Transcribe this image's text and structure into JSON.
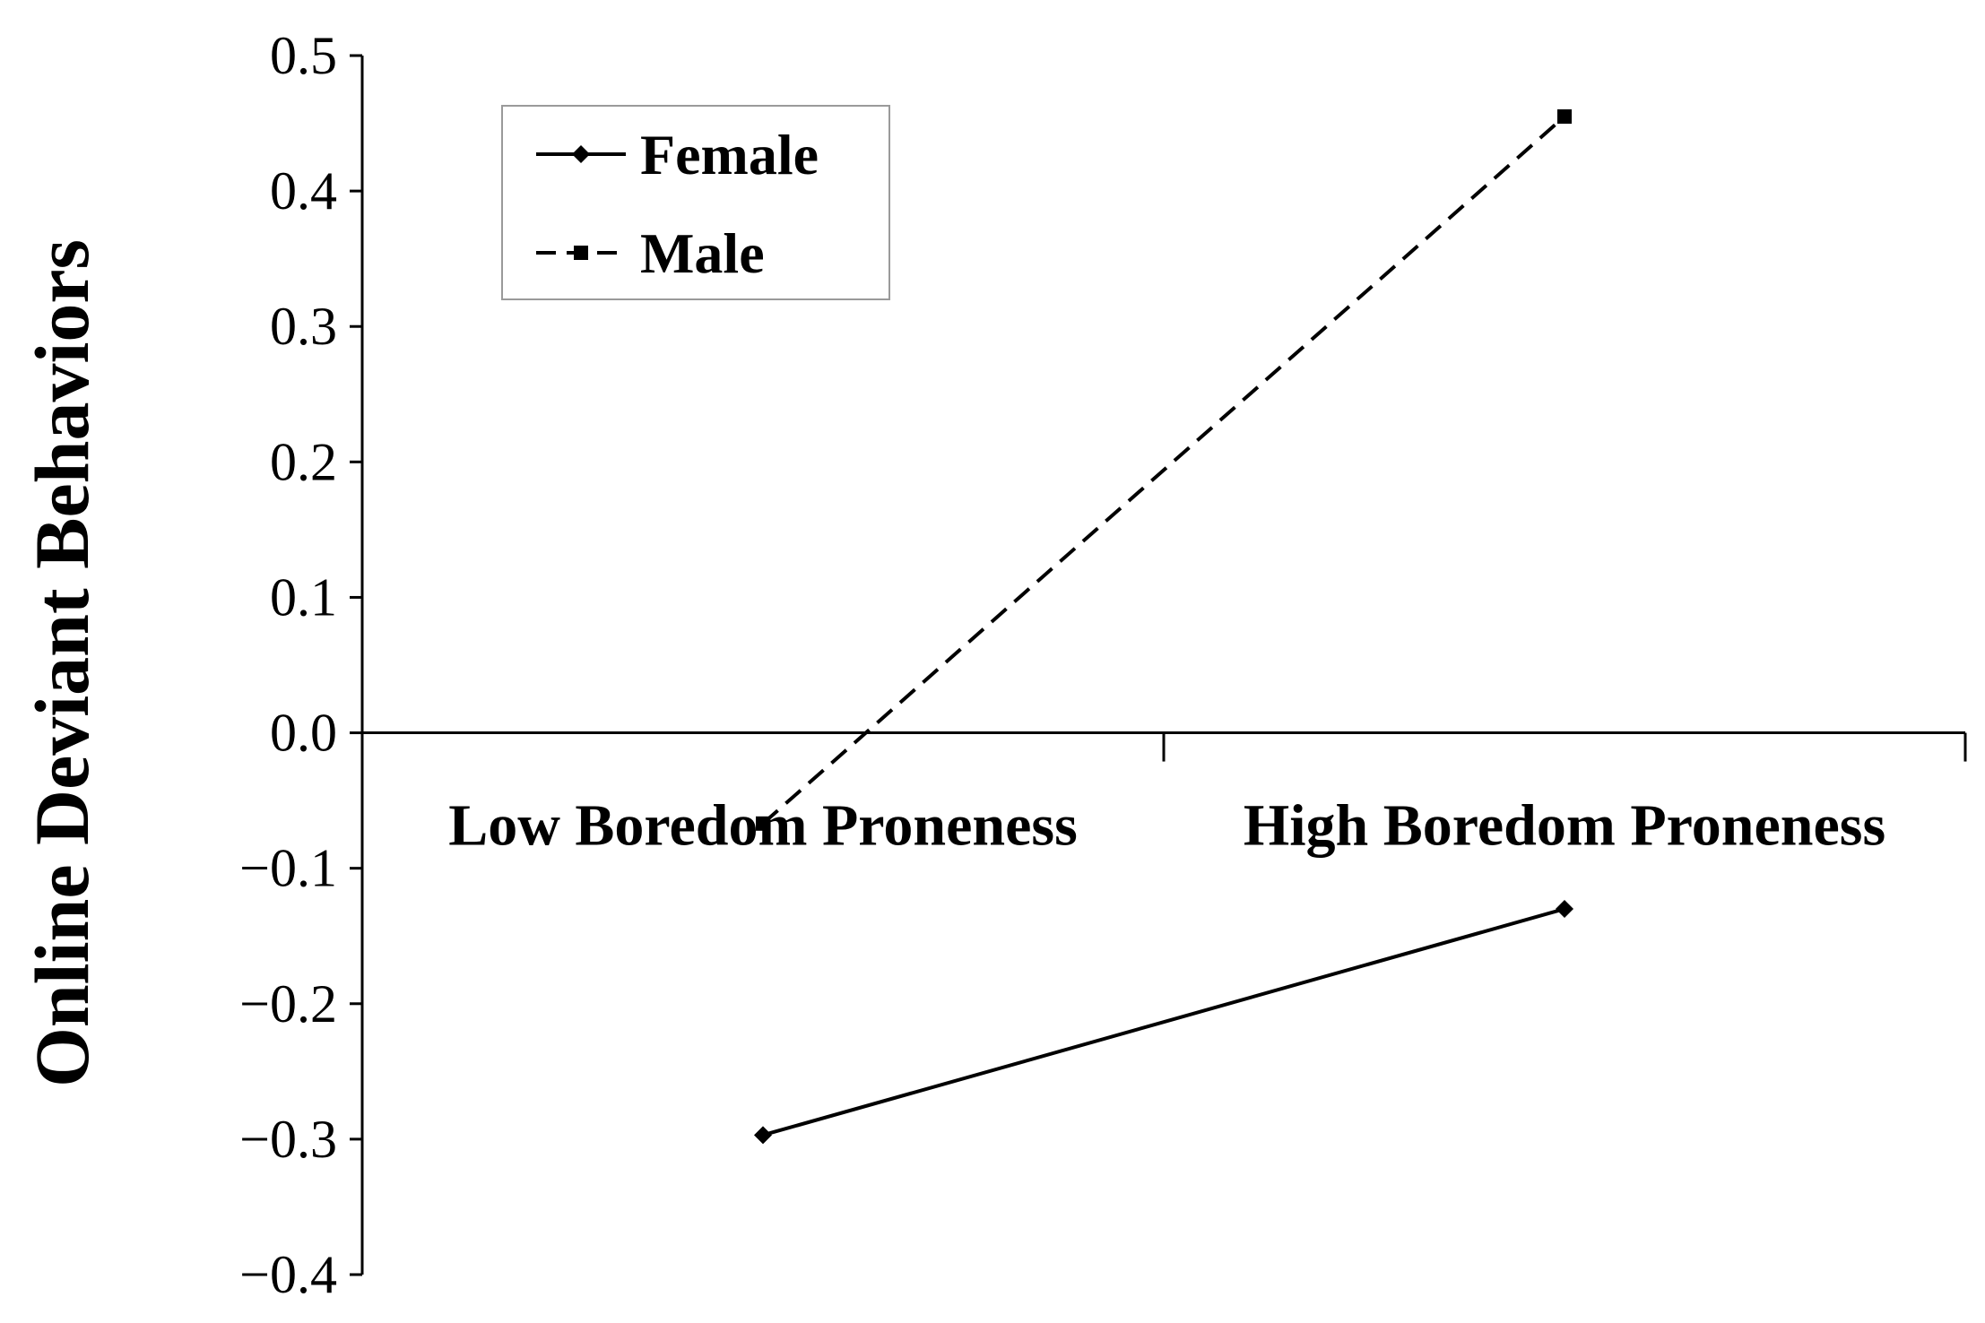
{
  "chart_data": {
    "type": "line",
    "title": "",
    "xlabel": "",
    "ylabel": "Online Deviant Behaviors",
    "categories": [
      "Low Boredom Proneness",
      "High Boredom Proneness"
    ],
    "series": [
      {
        "name": "Female",
        "values": [
          -0.297,
          -0.13
        ],
        "line_style": "solid",
        "marker": "diamond",
        "color": "#000000"
      },
      {
        "name": "Male",
        "values": [
          -0.067,
          0.455
        ],
        "line_style": "dashed",
        "marker": "square",
        "color": "#000000"
      }
    ],
    "ylim": [
      -0.4,
      0.5
    ],
    "yticks": [
      0.5,
      0.4,
      0.3,
      0.2,
      0.1,
      0.0,
      -0.1,
      -0.2,
      -0.3,
      -0.4
    ],
    "ytick_labels": [
      "0.5",
      "0.4",
      "0.3",
      "0.2",
      "0.1",
      "0.0",
      "−0.1",
      "−0.2",
      "−0.3",
      "−0.4"
    ],
    "grid": false,
    "legend_position": "top-left"
  }
}
